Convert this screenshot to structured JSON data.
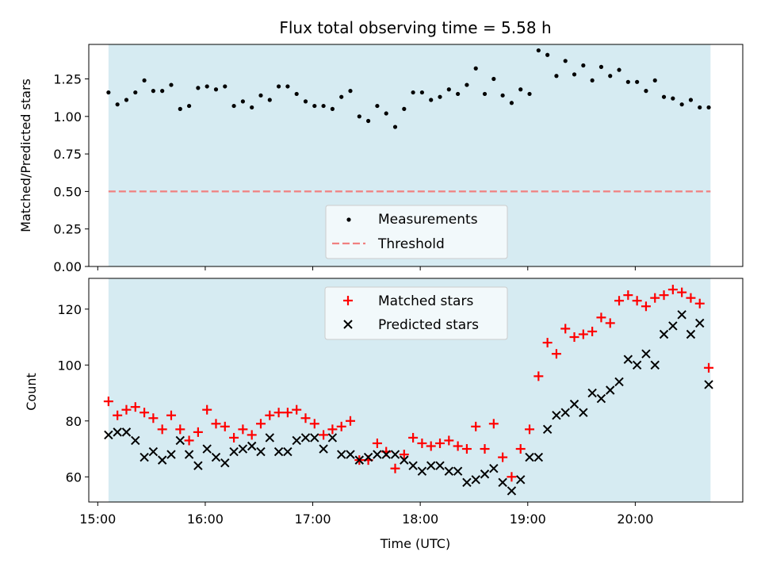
{
  "figure": {
    "title": "Flux total observing time = 5.58 h",
    "shaded_span_color": "#add8e6",
    "shaded_span": [
      "15:06",
      "20:42"
    ]
  },
  "chart_data": [
    {
      "id": "ratio",
      "type": "scatter",
      "title": "Flux total observing time = 5.58 h",
      "xlabel": "",
      "ylabel": "Matched/Predicted stars",
      "xlim": [
        "14:55",
        "21:00"
      ],
      "ylim": [
        0,
        1.48
      ],
      "yticks": [
        "0.00",
        "0.25",
        "0.50",
        "0.75",
        "1.00",
        "1.25"
      ],
      "grid": false,
      "legend_placement": "lower-center",
      "series": [
        {
          "name": "Measurements",
          "marker": "dot",
          "color": "#000000",
          "x": [
            "15:06",
            "15:11",
            "15:16",
            "15:21",
            "15:26",
            "15:31",
            "15:36",
            "15:41",
            "15:46",
            "15:51",
            "15:56",
            "16:01",
            "16:06",
            "16:11",
            "16:16",
            "16:21",
            "16:26",
            "16:31",
            "16:36",
            "16:41",
            "16:46",
            "16:51",
            "16:56",
            "17:01",
            "17:06",
            "17:11",
            "17:16",
            "17:21",
            "17:26",
            "17:31",
            "17:36",
            "17:41",
            "17:46",
            "17:51",
            "17:56",
            "18:01",
            "18:06",
            "18:11",
            "18:16",
            "18:21",
            "18:26",
            "18:31",
            "18:36",
            "18:41",
            "18:46",
            "18:51",
            "18:56",
            "19:01",
            "19:06",
            "19:11",
            "19:16",
            "19:21",
            "19:26",
            "19:31",
            "19:36",
            "19:41",
            "19:46",
            "19:51",
            "19:56",
            "20:01",
            "20:06",
            "20:11",
            "20:16",
            "20:21",
            "20:26",
            "20:31",
            "20:36",
            "20:41"
          ],
          "y": [
            1.16,
            1.08,
            1.11,
            1.16,
            1.24,
            1.17,
            1.17,
            1.21,
            1.05,
            1.07,
            1.19,
            1.2,
            1.18,
            1.2,
            1.07,
            1.1,
            1.06,
            1.14,
            1.11,
            1.2,
            1.2,
            1.15,
            1.1,
            1.07,
            1.07,
            1.05,
            1.13,
            1.17,
            1.0,
            0.97,
            1.07,
            1.02,
            0.93,
            1.05,
            1.16,
            1.16,
            1.11,
            1.13,
            1.18,
            1.15,
            1.21,
            1.32,
            1.15,
            1.25,
            1.14,
            1.09,
            1.18,
            1.15,
            1.44,
            1.41,
            1.27,
            1.37,
            1.28,
            1.34,
            1.24,
            1.33,
            1.27,
            1.31,
            1.23,
            1.23,
            1.17,
            1.24,
            1.13,
            1.12,
            1.08,
            1.11,
            1.06,
            1.06
          ]
        },
        {
          "name": "Threshold",
          "marker": "dashed-line",
          "color": "#f08080",
          "x": [
            "15:06",
            "20:42"
          ],
          "y": [
            0.5,
            0.5
          ]
        }
      ]
    },
    {
      "id": "counts",
      "type": "scatter",
      "title": "",
      "xlabel": "Time (UTC)",
      "ylabel": "Count",
      "xlim": [
        "14:55",
        "21:00"
      ],
      "xticks": [
        "15:00",
        "16:00",
        "17:00",
        "18:00",
        "19:00",
        "20:00"
      ],
      "ylim": [
        51,
        131
      ],
      "yticks": [
        "60",
        "80",
        "100",
        "120"
      ],
      "grid": false,
      "legend_placement": "upper-center",
      "series": [
        {
          "name": "Matched stars",
          "marker": "plus",
          "color": "#ff0000",
          "x": [
            "15:06",
            "15:11",
            "15:16",
            "15:21",
            "15:26",
            "15:31",
            "15:36",
            "15:41",
            "15:46",
            "15:51",
            "15:56",
            "16:01",
            "16:06",
            "16:11",
            "16:16",
            "16:21",
            "16:26",
            "16:31",
            "16:36",
            "16:41",
            "16:46",
            "16:51",
            "16:56",
            "17:01",
            "17:06",
            "17:11",
            "17:16",
            "17:21",
            "17:26",
            "17:31",
            "17:36",
            "17:41",
            "17:46",
            "17:51",
            "17:56",
            "18:01",
            "18:06",
            "18:11",
            "18:16",
            "18:21",
            "18:26",
            "18:31",
            "18:36",
            "18:41",
            "18:46",
            "18:51",
            "18:56",
            "19:01",
            "19:06",
            "19:11",
            "19:16",
            "19:21",
            "19:26",
            "19:31",
            "19:36",
            "19:41",
            "19:46",
            "19:51",
            "19:56",
            "20:01",
            "20:06",
            "20:11",
            "20:16",
            "20:21",
            "20:26",
            "20:31",
            "20:36",
            "20:41"
          ],
          "y": [
            87,
            82,
            84,
            85,
            83,
            81,
            77,
            82,
            77,
            73,
            76,
            84,
            79,
            78,
            74,
            77,
            75,
            79,
            82,
            83,
            83,
            84,
            81,
            79,
            75,
            77,
            78,
            80,
            66,
            66,
            72,
            69,
            63,
            68,
            74,
            72,
            71,
            72,
            73,
            71,
            70,
            78,
            70,
            79,
            67,
            60,
            70,
            77,
            96,
            108,
            104,
            113,
            110,
            111,
            112,
            117,
            115,
            123,
            125,
            123,
            121,
            124,
            125,
            127,
            126,
            124,
            122,
            99
          ]
        },
        {
          "name": "Predicted stars",
          "marker": "x",
          "color": "#000000",
          "x": [
            "15:06",
            "15:11",
            "15:16",
            "15:21",
            "15:26",
            "15:31",
            "15:36",
            "15:41",
            "15:46",
            "15:51",
            "15:56",
            "16:01",
            "16:06",
            "16:11",
            "16:16",
            "16:21",
            "16:26",
            "16:31",
            "16:36",
            "16:41",
            "16:46",
            "16:51",
            "16:56",
            "17:01",
            "17:06",
            "17:11",
            "17:16",
            "17:21",
            "17:26",
            "17:31",
            "17:36",
            "17:41",
            "17:46",
            "17:51",
            "17:56",
            "18:01",
            "18:06",
            "18:11",
            "18:16",
            "18:21",
            "18:26",
            "18:31",
            "18:36",
            "18:41",
            "18:46",
            "18:51",
            "18:56",
            "19:01",
            "19:06",
            "19:11",
            "19:16",
            "19:21",
            "19:26",
            "19:31",
            "19:36",
            "19:41",
            "19:46",
            "19:51",
            "19:56",
            "20:01",
            "20:06",
            "20:11",
            "20:16",
            "20:21",
            "20:26",
            "20:31",
            "20:36",
            "20:41"
          ],
          "y": [
            75,
            76,
            76,
            73,
            67,
            69,
            66,
            68,
            73,
            68,
            64,
            70,
            67,
            65,
            69,
            70,
            71,
            69,
            74,
            69,
            69,
            73,
            74,
            74,
            70,
            74,
            68,
            68,
            66,
            67,
            68,
            68,
            68,
            66,
            64,
            62,
            64,
            64,
            62,
            62,
            58,
            59,
            61,
            63,
            58,
            55,
            59,
            67,
            67,
            77,
            82,
            83,
            86,
            83,
            90,
            88,
            91,
            94,
            102,
            100,
            104,
            100,
            111,
            114,
            118,
            111,
            115,
            93
          ]
        }
      ]
    }
  ]
}
